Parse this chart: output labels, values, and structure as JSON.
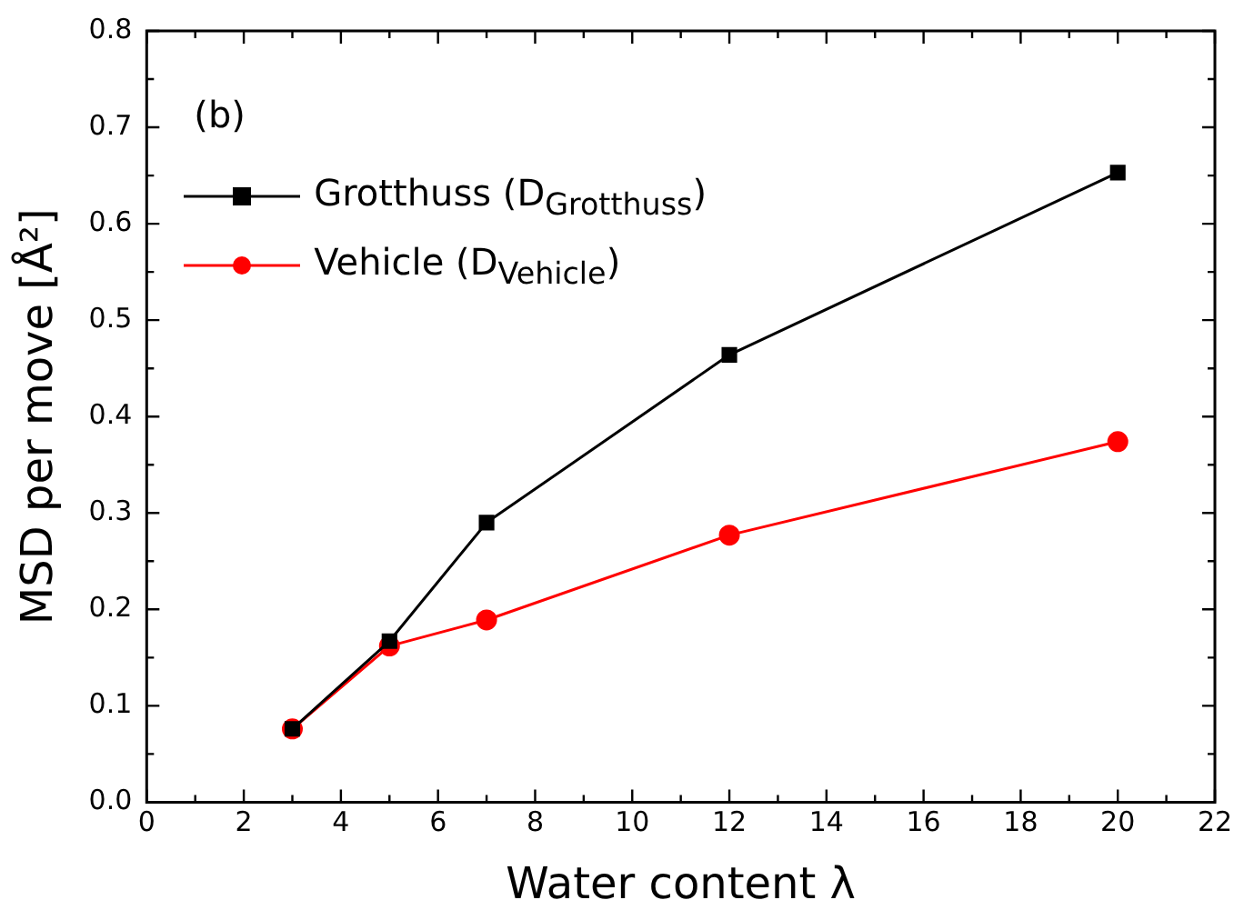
{
  "chart_data": {
    "type": "line",
    "xlabel": "Water content λ",
    "ylabel": "MSD per move [Å²]",
    "annotations": [
      "(b)"
    ],
    "x": [
      3,
      5,
      7,
      12,
      20
    ],
    "series": [
      {
        "name": "Grotthuss (D$_{Grotthuss}$)",
        "color": "#000000",
        "marker": "square",
        "values": [
          0.076,
          0.167,
          0.29,
          0.464,
          0.653
        ]
      },
      {
        "name": "Vehicle (D$_{Vehicle}$)",
        "color": "#ff0000",
        "marker": "circle",
        "values": [
          0.076,
          0.162,
          0.189,
          0.277,
          0.374
        ]
      }
    ],
    "xlim": [
      0,
      22
    ],
    "xticks": [
      0,
      2,
      4,
      6,
      8,
      10,
      12,
      14,
      16,
      18,
      20,
      22
    ],
    "ylim": [
      0,
      0.8
    ],
    "yticks": [
      {
        "value": 0,
        "label": "0.0"
      },
      0.1,
      0.2,
      0.3,
      0.4,
      0.5,
      0.6,
      0.7,
      0.8
    ],
    "grid": false,
    "legend": "top left",
    "line_style": "solid"
  }
}
